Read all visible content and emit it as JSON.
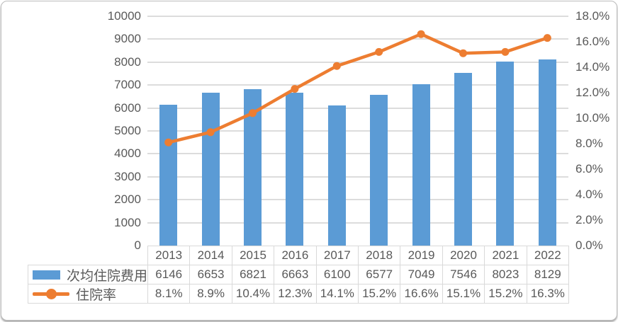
{
  "chart_data": {
    "type": "combo-bar-line",
    "title": "",
    "categories": [
      "2013",
      "2014",
      "2015",
      "2016",
      "2017",
      "2018",
      "2019",
      "2020",
      "2021",
      "2022"
    ],
    "series": [
      {
        "name": "次均住院费用",
        "type": "bar",
        "axis": "left",
        "color": "#5B9BD5",
        "values": [
          6146,
          6653,
          6821,
          6663,
          6100,
          6577,
          7049,
          7546,
          8023,
          8129
        ]
      },
      {
        "name": "住院率",
        "type": "line",
        "axis": "right",
        "color": "#ED7D31",
        "values": [
          8.1,
          8.9,
          10.4,
          12.3,
          14.1,
          15.2,
          16.6,
          15.1,
          15.2,
          16.3
        ],
        "labels": [
          "8.1%",
          "8.9%",
          "10.4%",
          "12.3%",
          "14.1%",
          "15.2%",
          "16.6%",
          "15.1%",
          "15.2%",
          "16.3%"
        ]
      }
    ],
    "left_axis": {
      "min": 0,
      "max": 10000,
      "step": 1000,
      "labels": [
        "0",
        "1000",
        "2000",
        "3000",
        "4000",
        "5000",
        "6000",
        "7000",
        "8000",
        "9000",
        "10000"
      ]
    },
    "right_axis": {
      "min": 0,
      "max": 18,
      "step": 2,
      "labels": [
        "0.0%",
        "2.0%",
        "4.0%",
        "6.0%",
        "8.0%",
        "10.0%",
        "12.0%",
        "14.0%",
        "16.0%",
        "18.0%"
      ]
    },
    "grid": true,
    "legend_position": "bottom-left-table"
  },
  "colors": {
    "bar": "#5B9BD5",
    "line": "#ED7D31",
    "gridline": "#DCDCDC",
    "text": "#595959",
    "table_border": "#D9D9D9"
  }
}
